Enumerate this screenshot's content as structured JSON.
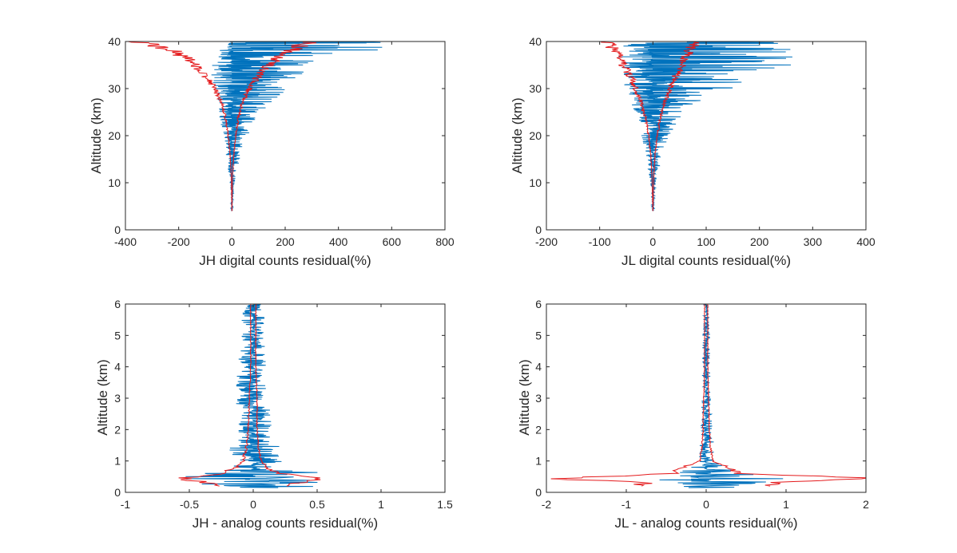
{
  "colors": {
    "residual_series": "#0072BD",
    "envelope_series": "#E41A1C",
    "axes": "#262626",
    "background": "#ffffff"
  },
  "chart_data": [
    {
      "type": "line",
      "id": "jh_digital",
      "xlabel": "JH digital counts residual(%)",
      "ylabel": "Altitude (km)",
      "xlim": [
        -400,
        800
      ],
      "ylim": [
        0,
        40
      ],
      "xticks": [
        -400,
        -200,
        0,
        200,
        400,
        600,
        800
      ],
      "yticks": [
        0,
        10,
        20,
        30,
        40
      ],
      "grid": false,
      "series": [
        {
          "role": "residual",
          "color": "#0072BD",
          "y_start": 4,
          "y_end": 40,
          "envelope_profile": {
            "y": [
              4,
              10,
              15,
              20,
              25,
              28,
              30,
              33,
              35,
              37,
              38,
              39,
              40
            ],
            "x_max": [
              2,
              10,
              30,
              60,
              110,
              170,
              220,
              270,
              320,
              420,
              540,
              700,
              780
            ],
            "x_min": [
              -2,
              -8,
              -20,
              -35,
              -50,
              -60,
              -70,
              -80,
              -80,
              -60,
              -50,
              -30,
              -10
            ]
          }
        },
        {
          "role": "envelope_positive",
          "color": "#E41A1C",
          "y": [
            4,
            8,
            12,
            16,
            20,
            24,
            27,
            30,
            32,
            34,
            36,
            38,
            39,
            40
          ],
          "x": [
            0,
            1,
            3,
            7,
            14,
            25,
            40,
            65,
            90,
            120,
            160,
            210,
            260,
            300
          ]
        },
        {
          "role": "envelope_negative",
          "color": "#E41A1C",
          "y": [
            4,
            8,
            12,
            16,
            20,
            24,
            27,
            30,
            32,
            34,
            36,
            38,
            39,
            40
          ],
          "x": [
            0,
            -1,
            -3,
            -7,
            -14,
            -25,
            -40,
            -65,
            -90,
            -120,
            -160,
            -220,
            -300,
            -360
          ]
        }
      ]
    },
    {
      "type": "line",
      "id": "jl_digital",
      "xlabel": "JL digital counts residual(%)",
      "ylabel": "Altitude (km)",
      "xlim": [
        -200,
        400
      ],
      "ylim": [
        0,
        40
      ],
      "xticks": [
        -200,
        -100,
        0,
        100,
        200,
        300,
        400
      ],
      "yticks": [
        0,
        10,
        20,
        30,
        40
      ],
      "grid": false,
      "series": [
        {
          "role": "residual",
          "color": "#0072BD",
          "y_start": 4,
          "y_end": 40,
          "envelope_profile": {
            "y": [
              4,
              10,
              15,
              20,
              25,
              28,
              30,
              33,
              35,
              37,
              38,
              39,
              40
            ],
            "x_max": [
              2,
              6,
              15,
              30,
              60,
              100,
              150,
              200,
              300,
              260,
              280,
              300,
              310
            ],
            "x_min": [
              -2,
              -5,
              -12,
              -22,
              -35,
              -45,
              -55,
              -60,
              -65,
              -65,
              -65,
              -60,
              -60
            ]
          }
        },
        {
          "role": "envelope_positive",
          "color": "#E41A1C",
          "y": [
            4,
            8,
            12,
            16,
            20,
            24,
            27,
            30,
            32,
            34,
            36,
            38,
            39,
            40
          ],
          "x": [
            0,
            1,
            2,
            4,
            8,
            14,
            22,
            32,
            40,
            50,
            58,
            66,
            75,
            85
          ]
        },
        {
          "role": "envelope_negative",
          "color": "#E41A1C",
          "y": [
            4,
            8,
            12,
            16,
            20,
            24,
            27,
            30,
            32,
            34,
            36,
            38,
            39,
            40
          ],
          "x": [
            0,
            -1,
            -2,
            -4,
            -8,
            -14,
            -22,
            -32,
            -40,
            -50,
            -60,
            -70,
            -80,
            -90
          ]
        }
      ]
    },
    {
      "type": "line",
      "id": "jh_analog",
      "xlabel": "JH - analog counts residual(%)",
      "ylabel": "Altitude (km)",
      "xlim": [
        -1,
        1.5
      ],
      "ylim": [
        0,
        6
      ],
      "xticks": [
        -1,
        -0.5,
        0,
        0.5,
        1,
        1.5
      ],
      "yticks": [
        0,
        1,
        2,
        3,
        4,
        5,
        6
      ],
      "grid": false,
      "series": [
        {
          "role": "residual",
          "color": "#0072BD",
          "y_start": 0.15,
          "y_end": 6,
          "envelope_profile": {
            "y": [
              0.15,
              0.3,
              0.45,
              0.6,
              0.8,
              1.0,
              1.5,
              2.0,
              3.0,
              4.0,
              5.0,
              6.0
            ],
            "x_max": [
              0.5,
              0.6,
              1.0,
              0.6,
              0.3,
              0.25,
              0.2,
              0.15,
              0.12,
              0.1,
              0.1,
              0.08
            ],
            "x_min": [
              -0.3,
              -0.5,
              -0.65,
              -0.4,
              -0.2,
              -0.2,
              -0.18,
              -0.15,
              -0.15,
              -0.15,
              -0.1,
              -0.08
            ]
          }
        },
        {
          "role": "envelope_positive",
          "color": "#E41A1C",
          "y": [
            0.2,
            0.3,
            0.45,
            0.6,
            0.8,
            1.0,
            1.5,
            2.0,
            3.0,
            4.0,
            5.0,
            6.0
          ],
          "x": [
            0.25,
            0.35,
            0.6,
            0.2,
            0.1,
            0.06,
            0.04,
            0.03,
            0.03,
            0.02,
            0.02,
            0.02
          ]
        },
        {
          "role": "envelope_negative",
          "color": "#E41A1C",
          "y": [
            0.2,
            0.3,
            0.45,
            0.6,
            0.8,
            1.0,
            1.5,
            2.0,
            3.0,
            4.0,
            5.0,
            6.0
          ],
          "x": [
            -0.25,
            -0.35,
            -0.6,
            -0.25,
            -0.12,
            -0.08,
            -0.05,
            -0.04,
            -0.03,
            -0.02,
            -0.02,
            -0.02
          ]
        }
      ]
    },
    {
      "type": "line",
      "id": "jl_analog",
      "xlabel": "JL - analog counts residual(%)",
      "ylabel": "Altitude (km)",
      "xlim": [
        -2,
        2
      ],
      "ylim": [
        0,
        6
      ],
      "xticks": [
        -2,
        -1,
        0,
        1,
        2
      ],
      "yticks": [
        0,
        1,
        2,
        3,
        4,
        5,
        6
      ],
      "grid": false,
      "series": [
        {
          "role": "residual",
          "color": "#0072BD",
          "y_start": 0.15,
          "y_end": 6,
          "envelope_profile": {
            "y": [
              0.15,
              0.3,
              0.45,
              0.6,
              0.8,
              1.0,
              1.5,
              2.0,
              3.0,
              4.0,
              5.0,
              6.0
            ],
            "x_max": [
              0.55,
              0.8,
              1.6,
              0.5,
              0.25,
              0.12,
              0.1,
              0.08,
              0.06,
              0.05,
              0.05,
              0.04
            ],
            "x_min": [
              -0.4,
              -0.6,
              -1.0,
              -0.45,
              -0.2,
              -0.1,
              -0.08,
              -0.07,
              -0.06,
              -0.05,
              -0.05,
              -0.04
            ]
          }
        },
        {
          "role": "envelope_positive",
          "color": "#E41A1C",
          "y": [
            0.2,
            0.3,
            0.45,
            0.6,
            0.8,
            1.0,
            1.5,
            2.0,
            3.0,
            4.0,
            5.0,
            6.0
          ],
          "x": [
            0.75,
            0.8,
            1.95,
            0.4,
            0.3,
            0.08,
            0.05,
            0.04,
            0.03,
            0.02,
            0.02,
            0.02
          ]
        },
        {
          "role": "envelope_negative",
          "color": "#E41A1C",
          "y": [
            0.2,
            0.3,
            0.45,
            0.6,
            0.8,
            1.0,
            1.5,
            2.0,
            3.0,
            4.0,
            5.0,
            6.0
          ],
          "x": [
            -0.75,
            -0.8,
            -1.95,
            -0.4,
            -0.3,
            -0.08,
            -0.05,
            -0.04,
            -0.03,
            -0.02,
            -0.02,
            -0.02
          ]
        }
      ]
    }
  ]
}
